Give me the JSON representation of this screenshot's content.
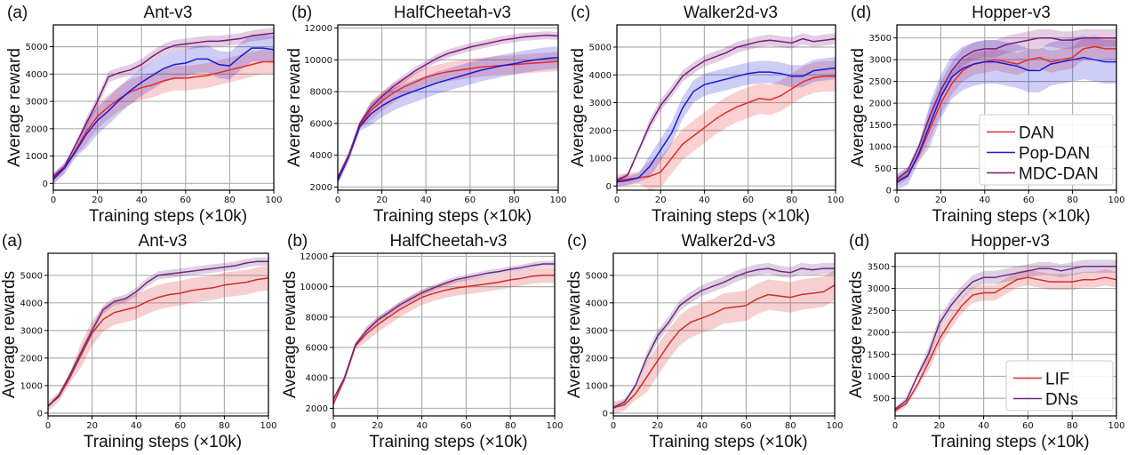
{
  "chart_data": [
    {
      "type": "line",
      "panel": "(a)",
      "title": "Ant-v3",
      "xlabel": "Training steps (×10k)",
      "ylabel": "Average reward",
      "xlim": [
        0,
        100
      ],
      "ylim": [
        -250,
        5800
      ],
      "xticks": [
        0,
        20,
        40,
        60,
        80,
        100
      ],
      "yticks": [
        0,
        1000,
        2000,
        3000,
        4000,
        5000
      ],
      "grid": true,
      "x": [
        0,
        5,
        10,
        15,
        20,
        25,
        30,
        35,
        40,
        45,
        50,
        55,
        60,
        65,
        70,
        75,
        80,
        85,
        90,
        95,
        100
      ],
      "series": [
        {
          "name": "DAN",
          "color": "#e8282b",
          "values": [
            200,
            550,
            1200,
            1900,
            2450,
            2800,
            3100,
            3350,
            3500,
            3600,
            3750,
            3850,
            3850,
            3900,
            3950,
            4050,
            4150,
            4250,
            4350,
            4450,
            4450
          ],
          "band": 450
        },
        {
          "name": "Pop-DAN",
          "color": "#1a1ad6",
          "values": [
            150,
            550,
            1150,
            1800,
            2300,
            2650,
            3050,
            3400,
            3700,
            3950,
            4200,
            4350,
            4400,
            4550,
            4550,
            4350,
            4300,
            4650,
            4950,
            4950,
            4900
          ],
          "band": 500
        },
        {
          "name": "MDC-DAN",
          "color": "#7a1c7a",
          "values": [
            250,
            600,
            1400,
            2200,
            3000,
            3900,
            4050,
            4150,
            4350,
            4650,
            4900,
            5050,
            5100,
            5150,
            5200,
            5200,
            5250,
            5300,
            5400,
            5450,
            5500
          ],
          "band": 200
        }
      ]
    },
    {
      "type": "line",
      "panel": "(b)",
      "title": "HalfCheetah-v3",
      "xlabel": "Training steps (×10k)",
      "ylabel": "Average reward",
      "xlim": [
        0,
        100
      ],
      "ylim": [
        1800,
        12200
      ],
      "xticks": [
        0,
        20,
        40,
        60,
        80,
        100
      ],
      "yticks": [
        2000,
        4000,
        6000,
        8000,
        10000,
        12000
      ],
      "grid": true,
      "x": [
        0,
        5,
        10,
        15,
        20,
        25,
        30,
        35,
        40,
        45,
        50,
        55,
        60,
        65,
        70,
        75,
        80,
        85,
        90,
        95,
        100
      ],
      "series": [
        {
          "name": "DAN",
          "color": "#e8282b",
          "values": [
            2500,
            4000,
            5900,
            6800,
            7400,
            7900,
            8300,
            8600,
            8900,
            9100,
            9250,
            9350,
            9450,
            9550,
            9600,
            9650,
            9700,
            9750,
            9800,
            9850,
            9900
          ],
          "band": 600
        },
        {
          "name": "Pop-DAN",
          "color": "#1a1ad6",
          "values": [
            2400,
            3900,
            5800,
            6600,
            7100,
            7500,
            7800,
            8050,
            8300,
            8550,
            8750,
            8950,
            9150,
            9350,
            9500,
            9650,
            9750,
            9900,
            10000,
            10100,
            10150
          ],
          "band": 700
        },
        {
          "name": "MDC-DAN",
          "color": "#7a1c7a",
          "values": [
            2600,
            4000,
            6000,
            7000,
            7700,
            8300,
            8800,
            9300,
            9700,
            10100,
            10400,
            10600,
            10800,
            10950,
            11100,
            11250,
            11350,
            11450,
            11500,
            11550,
            11500
          ],
          "band": 250
        }
      ]
    },
    {
      "type": "line",
      "panel": "(c)",
      "title": "Walker2d-v3",
      "xlabel": "Training steps (×10k)",
      "ylabel": "Average reward",
      "xlim": [
        0,
        100
      ],
      "ylim": [
        -150,
        5800
      ],
      "xticks": [
        0,
        20,
        40,
        60,
        80,
        100
      ],
      "yticks": [
        0,
        1000,
        2000,
        3000,
        4000,
        5000
      ],
      "grid": true,
      "x": [
        0,
        5,
        10,
        15,
        20,
        25,
        30,
        35,
        40,
        45,
        50,
        55,
        60,
        65,
        70,
        75,
        80,
        85,
        90,
        95,
        100
      ],
      "series": [
        {
          "name": "DAN",
          "color": "#e8282b",
          "values": [
            200,
            250,
            300,
            350,
            500,
            1000,
            1500,
            1800,
            2100,
            2400,
            2650,
            2850,
            3000,
            3150,
            3100,
            3250,
            3500,
            3750,
            3900,
            3950,
            3950
          ],
          "band": 550
        },
        {
          "name": "Pop-DAN",
          "color": "#1a1ad6",
          "values": [
            150,
            200,
            300,
            700,
            1300,
            1900,
            2800,
            3400,
            3650,
            3750,
            3850,
            3950,
            4050,
            4100,
            4100,
            4050,
            3950,
            3950,
            4150,
            4200,
            4250
          ],
          "band": 400
        },
        {
          "name": "MDC-DAN",
          "color": "#7a1c7a",
          "values": [
            200,
            400,
            1300,
            2200,
            2900,
            3400,
            3950,
            4250,
            4500,
            4650,
            4800,
            5000,
            5100,
            5200,
            5250,
            5200,
            5150,
            5300,
            5200,
            5250,
            5300
          ],
          "band": 200
        }
      ]
    },
    {
      "type": "line",
      "panel": "(d)",
      "title": "Hopper-v3",
      "xlabel": "Training steps (×10k)",
      "ylabel": "Average reward",
      "xlim": [
        0,
        100
      ],
      "ylim": [
        0,
        3800
      ],
      "xticks": [
        0,
        20,
        40,
        60,
        80,
        100
      ],
      "yticks": [
        0,
        500,
        1000,
        1500,
        2000,
        2500,
        3000,
        3500
      ],
      "grid": true,
      "legend": {
        "position": "lower-right",
        "entries": [
          "DAN",
          "Pop-DAN",
          "MDC-DAN"
        ]
      },
      "x": [
        0,
        5,
        10,
        15,
        20,
        25,
        30,
        35,
        40,
        45,
        50,
        55,
        60,
        65,
        70,
        75,
        80,
        85,
        90,
        95,
        100
      ],
      "series": [
        {
          "name": "DAN",
          "color": "#e8282b",
          "values": [
            200,
            350,
            800,
            1400,
            2000,
            2450,
            2750,
            2900,
            2950,
            3000,
            2950,
            2900,
            3000,
            3050,
            2950,
            3000,
            3050,
            3250,
            3300,
            3250,
            3250
          ],
          "band": 250
        },
        {
          "name": "Pop-DAN",
          "color": "#1a1ad6",
          "values": [
            180,
            330,
            850,
            1500,
            2150,
            2600,
            2800,
            2900,
            2950,
            2950,
            2900,
            2850,
            2750,
            2750,
            2900,
            2950,
            3000,
            3050,
            3000,
            2950,
            2950
          ],
          "band": 500
        },
        {
          "name": "MDC-DAN",
          "color": "#7a1c7a",
          "values": [
            250,
            450,
            1000,
            1700,
            2300,
            2750,
            3050,
            3200,
            3250,
            3250,
            3350,
            3400,
            3450,
            3500,
            3500,
            3450,
            3450,
            3500,
            3500,
            3500,
            3500
          ],
          "band": 200
        }
      ]
    },
    {
      "type": "line",
      "panel": "(a)",
      "title": "Ant-v3",
      "xlabel": "Training steps (×10k)",
      "ylabel": "Average rewards",
      "xlim": [
        0,
        100
      ],
      "ylim": [
        -100,
        5800
      ],
      "xticks": [
        0,
        20,
        40,
        60,
        80,
        100
      ],
      "yticks": [
        0,
        1000,
        2000,
        3000,
        4000,
        5000
      ],
      "grid": true,
      "x": [
        0,
        5,
        10,
        15,
        20,
        25,
        30,
        35,
        40,
        45,
        50,
        55,
        60,
        65,
        70,
        75,
        80,
        85,
        90,
        95,
        100
      ],
      "series": [
        {
          "name": "LIF",
          "color": "#d42b2b",
          "values": [
            250,
            600,
            1300,
            2100,
            2900,
            3400,
            3650,
            3750,
            3850,
            4050,
            4200,
            4300,
            4350,
            4450,
            4500,
            4550,
            4650,
            4700,
            4750,
            4850,
            4900
          ],
          "band": 450
        },
        {
          "name": "DNs",
          "color": "#6e2a7e",
          "values": [
            250,
            650,
            1400,
            2200,
            3000,
            3750,
            4050,
            4150,
            4400,
            4750,
            5000,
            5050,
            5100,
            5150,
            5200,
            5250,
            5300,
            5350,
            5450,
            5500,
            5500
          ],
          "band": 150
        }
      ]
    },
    {
      "type": "line",
      "panel": "(b)",
      "title": "HalfCheetah-v3",
      "xlabel": "Training steps (×10k)",
      "ylabel": "Average rewards",
      "xlim": [
        0,
        100
      ],
      "ylim": [
        1500,
        12200
      ],
      "xticks": [
        0,
        20,
        40,
        60,
        80,
        100
      ],
      "yticks": [
        2000,
        4000,
        6000,
        8000,
        10000,
        12000
      ],
      "grid": true,
      "x": [
        0,
        5,
        10,
        15,
        20,
        25,
        30,
        35,
        40,
        45,
        50,
        55,
        60,
        65,
        70,
        75,
        80,
        85,
        90,
        95,
        100
      ],
      "series": [
        {
          "name": "LIF",
          "color": "#d42b2b",
          "values": [
            2300,
            3900,
            6100,
            6900,
            7500,
            8000,
            8500,
            8900,
            9300,
            9550,
            9750,
            9900,
            10000,
            10100,
            10200,
            10300,
            10450,
            10550,
            10700,
            10750,
            10750
          ],
          "band": 500
        },
        {
          "name": "DNs",
          "color": "#6e2a7e",
          "values": [
            2600,
            4000,
            6200,
            7100,
            7800,
            8300,
            8800,
            9200,
            9600,
            9900,
            10200,
            10450,
            10600,
            10750,
            10900,
            11000,
            11150,
            11250,
            11400,
            11500,
            11500
          ],
          "band": 200
        }
      ]
    },
    {
      "type": "line",
      "panel": "(c)",
      "title": "Walker2d-v3",
      "xlabel": "Training steps (×10k)",
      "ylabel": "Average rewards",
      "xlim": [
        0,
        100
      ],
      "ylim": [
        -100,
        5800
      ],
      "xticks": [
        0,
        20,
        40,
        60,
        80,
        100
      ],
      "yticks": [
        0,
        1000,
        2000,
        3000,
        4000,
        5000
      ],
      "grid": true,
      "x": [
        0,
        5,
        10,
        15,
        20,
        25,
        30,
        35,
        40,
        45,
        50,
        55,
        60,
        65,
        70,
        75,
        80,
        85,
        90,
        95,
        100
      ],
      "series": [
        {
          "name": "LIF",
          "color": "#d42b2b",
          "values": [
            200,
            300,
            700,
            1300,
            1900,
            2500,
            3000,
            3300,
            3450,
            3600,
            3800,
            3850,
            3900,
            4150,
            4300,
            4250,
            4200,
            4300,
            4350,
            4400,
            4650
          ],
          "band": 550
        },
        {
          "name": "DNs",
          "color": "#6e2a7e",
          "values": [
            200,
            400,
            1000,
            2000,
            2800,
            3300,
            3900,
            4200,
            4450,
            4600,
            4750,
            4950,
            5100,
            5200,
            5250,
            5150,
            5100,
            5250,
            5200,
            5250,
            5250
          ],
          "band": 200
        }
      ]
    },
    {
      "type": "line",
      "panel": "(d)",
      "title": "Hopper-v3",
      "xlabel": "Training steps (×10k)",
      "ylabel": "Average rewards",
      "xlim": [
        0,
        100
      ],
      "ylim": [
        100,
        3800
      ],
      "xticks": [
        0,
        20,
        40,
        60,
        80,
        100
      ],
      "yticks": [
        500,
        1000,
        1500,
        2000,
        2500,
        3000,
        3500
      ],
      "grid": true,
      "legend": {
        "position": "lower-right",
        "entries": [
          "LIF",
          "DNs"
        ]
      },
      "x": [
        0,
        5,
        10,
        15,
        20,
        25,
        30,
        35,
        40,
        45,
        50,
        55,
        60,
        65,
        70,
        75,
        80,
        85,
        90,
        95,
        100
      ],
      "series": [
        {
          "name": "LIF",
          "color": "#d42b2b",
          "values": [
            220,
            380,
            800,
            1300,
            1850,
            2250,
            2600,
            2850,
            2900,
            2900,
            3050,
            3200,
            3250,
            3200,
            3150,
            3150,
            3150,
            3200,
            3200,
            3250,
            3200
          ],
          "band": 180
        },
        {
          "name": "DNs",
          "color": "#6e2a7e",
          "values": [
            250,
            450,
            1000,
            1500,
            2200,
            2600,
            2900,
            3150,
            3250,
            3250,
            3300,
            3350,
            3400,
            3450,
            3450,
            3400,
            3450,
            3500,
            3500,
            3500,
            3500
          ],
          "band": 150
        }
      ]
    }
  ]
}
